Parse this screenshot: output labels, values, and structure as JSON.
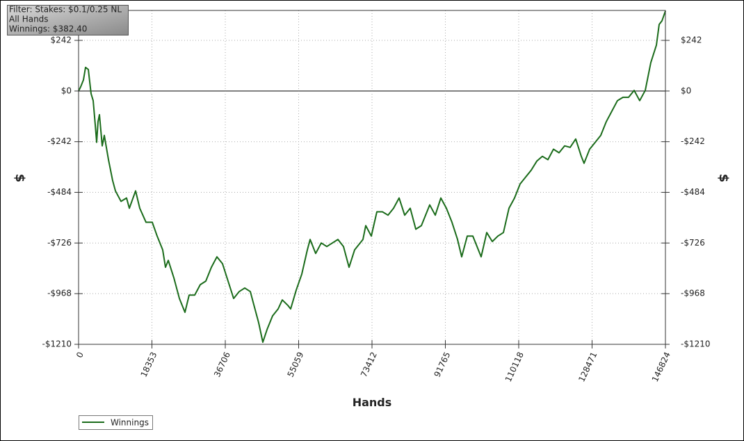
{
  "chart_data": {
    "type": "line",
    "info_box": [
      "Filter: Stakes: $0.1/0.25 NL",
      "All Hands",
      "Winnings: $382.40"
    ],
    "x_label": "Hands",
    "y_label": "$",
    "y2_label": "$",
    "xlim": [
      0,
      146824
    ],
    "xticks": [
      0,
      18353,
      36706,
      55059,
      73412,
      91765,
      110118,
      128471,
      146824
    ],
    "ylim": [
      -1210,
      385
    ],
    "yticks": [
      {
        "value": -1210,
        "label": "-$1210"
      },
      {
        "value": -968,
        "label": "-$968"
      },
      {
        "value": -726,
        "label": "-$726"
      },
      {
        "value": -484,
        "label": "-$484"
      },
      {
        "value": -242,
        "label": "-$242"
      },
      {
        "value": 0,
        "label": "$0"
      },
      {
        "value": 242,
        "label": "$242"
      }
    ],
    "y2lim": [
      -1210,
      385
    ],
    "y2ticks": [
      {
        "value": -1210,
        "label": "-$1210"
      },
      {
        "value": -968,
        "label": "-$968"
      },
      {
        "value": -726,
        "label": "-$726"
      },
      {
        "value": -484,
        "label": "-$484"
      },
      {
        "value": -242,
        "label": "-$242"
      },
      {
        "value": 0,
        "label": "$0"
      },
      {
        "value": 242,
        "label": "$242"
      }
    ],
    "grid": true,
    "zero_line": true,
    "legend": "bottom-left",
    "x": [
      0,
      522,
      1218,
      1740,
      2435,
      3131,
      3653,
      4175,
      4523,
      4871,
      5219,
      5915,
      6437,
      7480,
      8524,
      9220,
      10612,
      12003,
      12699,
      14265,
      15308,
      16874,
      18440,
      19657,
      21049,
      21745,
      22441,
      23833,
      25224,
      26616,
      27660,
      29051,
      30443,
      31835,
      33226,
      34618,
      36010,
      37402,
      38793,
      40185,
      41576,
      42968,
      43664,
      45056,
      46099,
      47143,
      48535,
      49927,
      50970,
      52362,
      53058,
      54449,
      55841,
      57233,
      57929,
      59320,
      60712,
      62104,
      63495,
      64887,
      66279,
      67670,
      69062,
      71150,
      71846,
      73238,
      74629,
      76021,
      77413,
      78804,
      80196,
      81588,
      82979,
      84371,
      85763,
      87850,
      89242,
      90634,
      92025,
      93417,
      94809,
      95852,
      97244,
      98636,
      100723,
      102115,
      103507,
      104898,
      106290,
      107682,
      109073,
      110465,
      111857,
      113248,
      114640,
      116032,
      117423,
      118815,
      120207,
      121598,
      122990,
      124381,
      125773,
      126469,
      127861,
      129252,
      130644,
      132036,
      133427,
      134819,
      136211,
      137602,
      138994,
      140386,
      141777,
      143169,
      144561,
      145257,
      145952,
      146824
    ],
    "series": [
      {
        "name": "Winnings",
        "color": "#1a6b1a",
        "values": [
          0,
          20,
          53,
          113,
          103,
          -13,
          -46,
          -162,
          -245,
          -146,
          -113,
          -262,
          -212,
          -328,
          -428,
          -477,
          -527,
          -511,
          -560,
          -477,
          -560,
          -627,
          -627,
          -693,
          -759,
          -842,
          -809,
          -892,
          -991,
          -1057,
          -975,
          -975,
          -925,
          -908,
          -842,
          -792,
          -825,
          -908,
          -991,
          -958,
          -941,
          -958,
          -1008,
          -1107,
          -1200,
          -1140,
          -1074,
          -1041,
          -998,
          -1024,
          -1041,
          -951,
          -875,
          -759,
          -709,
          -776,
          -726,
          -743,
          -726,
          -709,
          -743,
          -842,
          -759,
          -709,
          -643,
          -693,
          -577,
          -577,
          -593,
          -560,
          -511,
          -593,
          -560,
          -660,
          -643,
          -544,
          -593,
          -511,
          -560,
          -627,
          -709,
          -792,
          -693,
          -693,
          -792,
          -676,
          -719,
          -693,
          -676,
          -560,
          -511,
          -444,
          -411,
          -378,
          -335,
          -312,
          -328,
          -278,
          -295,
          -262,
          -269,
          -229,
          -312,
          -345,
          -278,
          -245,
          -212,
          -146,
          -96,
          -46,
          -30,
          -30,
          3,
          -46,
          3,
          136,
          219,
          318,
          335,
          382.4
        ]
      }
    ]
  }
}
